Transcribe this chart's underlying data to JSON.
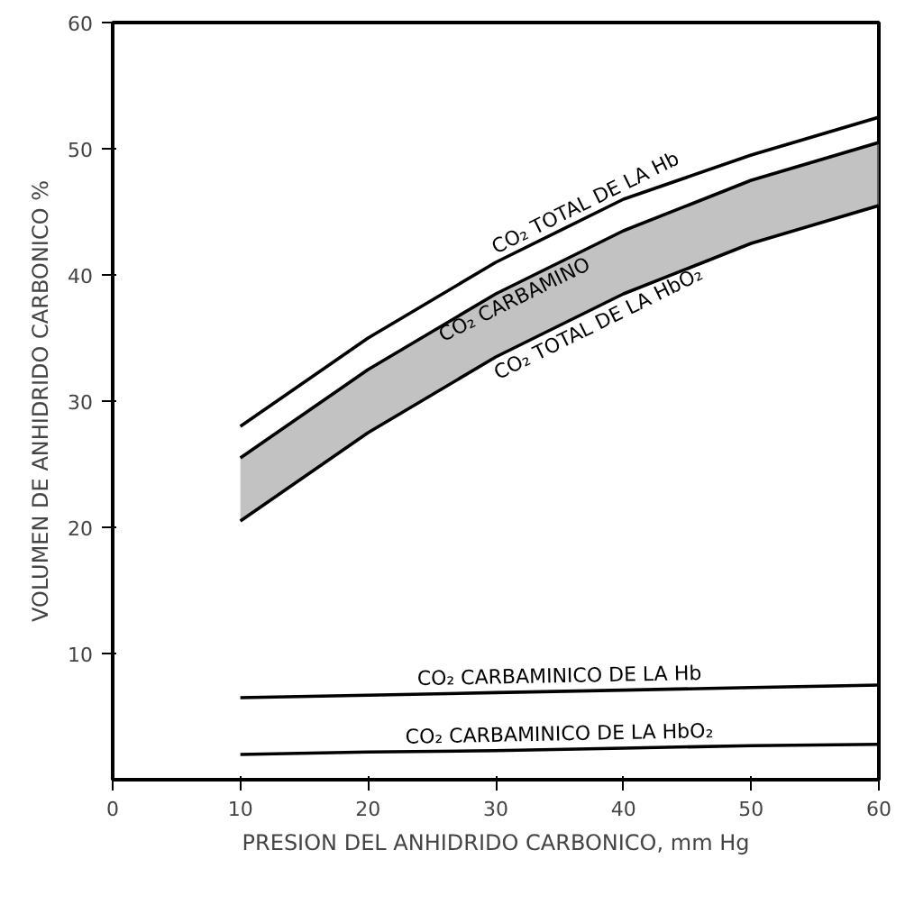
{
  "chart_data": {
    "type": "line",
    "xlabel": "PRESION DEL ANHIDRIDO CARBONICO, mm Hg",
    "ylabel": "VOLUMEN DE ANHIDRIDO CARBONICO %",
    "x": [
      10,
      20,
      30,
      40,
      50,
      60
    ],
    "xlim": [
      0,
      60
    ],
    "ylim": [
      0,
      60
    ],
    "xticks": [
      0,
      10,
      20,
      30,
      40,
      50,
      60
    ],
    "yticks": [
      10,
      20,
      30,
      40,
      50,
      60
    ],
    "grid": false,
    "marker": "none",
    "line_style": "solid",
    "series": [
      {
        "name": "CO₂ TOTAL DE LA Hb",
        "color": "#000000",
        "values": [
          28,
          35,
          41,
          46,
          49.5,
          52.5
        ]
      },
      {
        "name": "CO₂ CARBAMINO",
        "color": "#000000",
        "values": [
          25.5,
          32.5,
          38.5,
          43.5,
          47.5,
          50.5
        ],
        "lower": [
          20.5,
          27.5,
          33.5,
          38.5,
          42.5,
          45.5
        ],
        "upper": [
          25.5,
          32.5,
          38.5,
          43.5,
          47.5,
          50.5
        ]
      },
      {
        "name": "CO₂ TOTAL DE LA HbO₂",
        "color": "#000000",
        "values": [
          20.5,
          27.5,
          33.5,
          38.5,
          42.5,
          45.5
        ]
      },
      {
        "name": "CO₂ CARBAMINICO DE LA Hb",
        "color": "#000000",
        "values": [
          6.5,
          6.7,
          6.9,
          7.1,
          7.3,
          7.5
        ]
      },
      {
        "name": "CO₂ CARBAMINICO DE LA HbO₂",
        "color": "#000000",
        "values": [
          2,
          2.2,
          2.3,
          2.5,
          2.7,
          2.8
        ]
      }
    ]
  }
}
